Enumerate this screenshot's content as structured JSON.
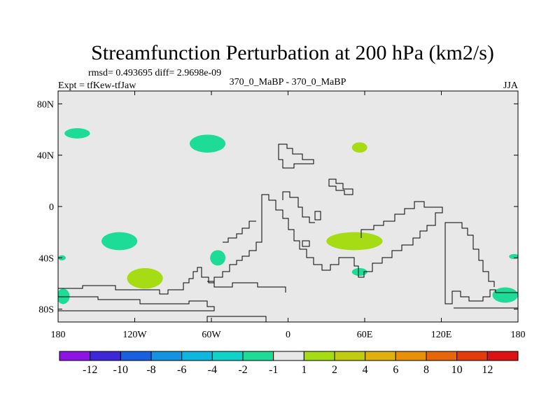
{
  "chart_data": {
    "type": "contour-map",
    "title": "Streamfunction Perturbation at 200 hPa (km2/s)",
    "stats": "rmsd= 0.493695 diff= 2.9698e-09",
    "left_label": "Expt = tfKew-tfJaw",
    "center_label": "370_0_MaBP - 370_0_MaBP",
    "right_label": "JJA",
    "x_axis": {
      "range": [
        -180,
        180
      ],
      "ticks": [
        -180,
        -120,
        -60,
        0,
        60,
        120,
        180
      ],
      "tick_labels": [
        "180",
        "120W",
        "60W",
        "0",
        "60E",
        "120E",
        "180"
      ]
    },
    "y_axis": {
      "range": [
        -90,
        90
      ],
      "ticks": [
        80,
        40,
        0,
        -40,
        -80
      ],
      "tick_labels": [
        "80N",
        "40N",
        "0",
        "40S",
        "80S"
      ]
    },
    "background_color": "#e8e8e8",
    "coastline_color": "#000000",
    "colorbar": {
      "colors": [
        "#8c14e6",
        "#3c28d8",
        "#1a5fe0",
        "#1592e0",
        "#0fb6de",
        "#0fd2c8",
        "#1cdc98",
        "#e8e8e8",
        "#a5dc14",
        "#c0cc10",
        "#deb10c",
        "#e8900a",
        "#e8660a",
        "#e23c0c",
        "#dd1212"
      ],
      "labels": [
        "-12",
        "-10",
        "-8",
        "-6",
        "-4",
        "-2",
        "-1",
        "1",
        "2",
        "4",
        "6",
        "8",
        "10",
        "12"
      ]
    },
    "anomaly_regions": [
      {
        "sign": "negative",
        "color": "#1cdc98",
        "lon": -165,
        "lat": 57,
        "rlon": 10,
        "rlat": 4
      },
      {
        "sign": "negative",
        "color": "#1cdc98",
        "lon": -63,
        "lat": 49,
        "rlon": 14,
        "rlat": 7
      },
      {
        "sign": "negative",
        "color": "#1cdc98",
        "lon": -132,
        "lat": -27,
        "rlon": 14,
        "rlat": 7
      },
      {
        "sign": "negative",
        "color": "#1cdc98",
        "lon": -55,
        "lat": -40,
        "rlon": 6,
        "rlat": 6
      },
      {
        "sign": "negative",
        "color": "#1cdc98",
        "lon": -177,
        "lat": -40,
        "rlon": 3,
        "rlat": 2
      },
      {
        "sign": "negative",
        "color": "#1cdc98",
        "lon": -176,
        "lat": -70,
        "rlon": 5,
        "rlat": 6
      },
      {
        "sign": "negative",
        "color": "#1cdc98",
        "lon": 56,
        "lat": -51,
        "rlon": 6,
        "rlat": 3
      },
      {
        "sign": "negative",
        "color": "#1cdc98",
        "lon": 170,
        "lat": -69,
        "rlon": 10,
        "rlat": 6
      },
      {
        "sign": "negative",
        "color": "#1cdc98",
        "lon": 177,
        "lat": -39,
        "rlon": 4,
        "rlat": 2
      },
      {
        "sign": "positive",
        "color": "#a5dc14",
        "lon": 56,
        "lat": 46,
        "rlon": 6,
        "rlat": 4
      },
      {
        "sign": "positive",
        "color": "#a5dc14",
        "lon": 52,
        "lat": -27,
        "rlon": 22,
        "rlat": 7
      },
      {
        "sign": "positive",
        "color": "#a5dc14",
        "lon": -112,
        "lat": -56,
        "rlon": 14,
        "rlat": 8
      }
    ]
  }
}
